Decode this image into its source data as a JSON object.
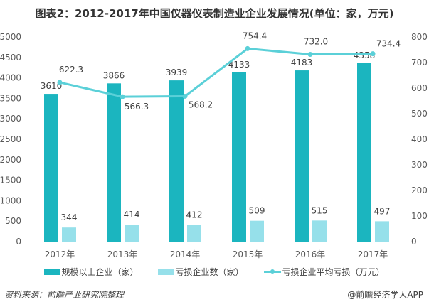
{
  "title": "图表2：2012-2017年中国仪器仪表制造业企业发展情况(单位：家，万元)",
  "colors": {
    "dark_bar": "#1BB5BF",
    "light_bar": "#96E0EA",
    "line": "#5BD0D8",
    "axis": "#D9D9D9"
  },
  "legend": [
    {
      "label": "规模以上企业（家）",
      "type": "bar",
      "color": "#1BB5BF"
    },
    {
      "label": "亏损企业数（家）",
      "type": "bar",
      "color": "#96E0EA"
    },
    {
      "label": "亏损企业平均亏损（万元）",
      "type": "line",
      "color": "#5BD0D8"
    }
  ],
  "source": "资料来源：前瞻产业研究院整理",
  "credit": "@前瞻经济学人APP",
  "chart_data": {
    "type": "bar",
    "title": "图表2：2012-2017年中国仪器仪表制造业企业发展情况(单位：家，万元)",
    "categories": [
      "2012年",
      "2013年",
      "2014年",
      "2015年",
      "2016年",
      "2017年"
    ],
    "series": [
      {
        "name": "规模以上企业（家）",
        "type": "bar",
        "axis": "left",
        "values": [
          3610,
          3866,
          3939,
          4133,
          4183,
          4358
        ]
      },
      {
        "name": "亏损企业数（家）",
        "type": "bar",
        "axis": "left",
        "values": [
          344,
          414,
          412,
          509,
          515,
          497
        ]
      },
      {
        "name": "亏损企业平均亏损（万元）",
        "type": "line",
        "axis": "right",
        "values": [
          622.3,
          566.3,
          568.2,
          754.4,
          732.0,
          734.4
        ]
      }
    ],
    "value_labels": {
      "dark": [
        "3610",
        "3866",
        "3939",
        "4133",
        "4183",
        "4358"
      ],
      "light": [
        "344",
        "414",
        "412",
        "509",
        "515",
        "497"
      ],
      "line": [
        "622.3",
        "566.3",
        "568.2",
        "754.4",
        "732.0",
        "734.4"
      ]
    },
    "left_axis": {
      "ylim": [
        0,
        5000
      ],
      "ticks": [
        "0",
        "500",
        "1000",
        "1500",
        "2000",
        "2500",
        "3000",
        "3500",
        "4000",
        "4500",
        "5000"
      ]
    },
    "right_axis": {
      "ylim": [
        0,
        800
      ],
      "ticks": [
        "0",
        "100",
        "200",
        "300",
        "400",
        "500",
        "600",
        "700",
        "800"
      ]
    },
    "xlabel": "",
    "ylabel": "",
    "grid": false,
    "legend_position": "bottom"
  }
}
